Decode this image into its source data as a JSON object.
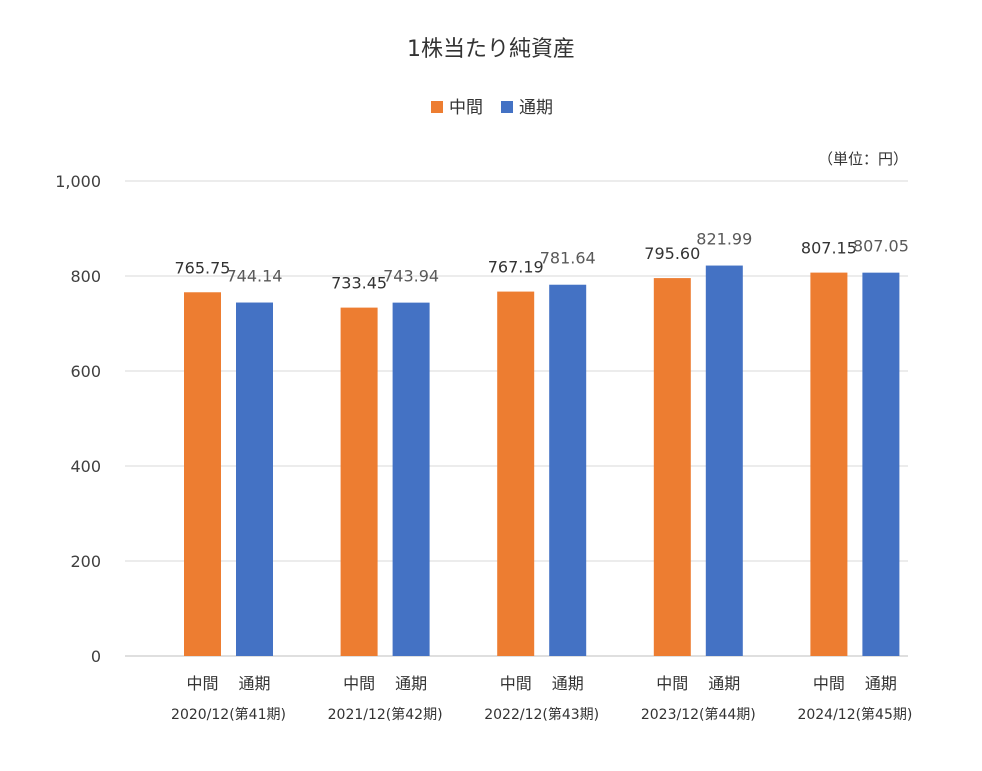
{
  "chart_data": {
    "type": "bar",
    "title": "1株当たり純資産",
    "unit_label": "（単位：円）",
    "legend": {
      "position": "top",
      "items": [
        "中間",
        "通期"
      ]
    },
    "colors": {
      "中間": "#ED7D31",
      "通期": "#4472C4"
    },
    "ylim": [
      0,
      1000
    ],
    "yticks": [
      0,
      200,
      400,
      600,
      800,
      1000
    ],
    "ytick_labels": [
      "0",
      "200",
      "400",
      "600",
      "800",
      "1,000"
    ],
    "grid": true,
    "groups": [
      {
        "period": "2020/12(第41期)",
        "sub_labels": [
          "中間",
          "通期"
        ],
        "values": [
          765.75,
          744.14
        ],
        "labels": [
          "765.75",
          "744.14"
        ]
      },
      {
        "period": "2021/12(第42期)",
        "sub_labels": [
          "中間",
          "通期"
        ],
        "values": [
          733.45,
          743.94
        ],
        "labels": [
          "733.45",
          "743.94"
        ]
      },
      {
        "period": "2022/12(第43期)",
        "sub_labels": [
          "中間",
          "通期"
        ],
        "values": [
          767.19,
          781.64
        ],
        "labels": [
          "767.19",
          "781.64"
        ]
      },
      {
        "period": "2023/12(第44期)",
        "sub_labels": [
          "中間",
          "通期"
        ],
        "values": [
          795.6,
          821.99
        ],
        "labels": [
          "795.60",
          "821.99"
        ]
      },
      {
        "period": "2024/12(第45期)",
        "sub_labels": [
          "中間",
          "通期"
        ],
        "values": [
          807.15,
          807.05
        ],
        "labels": [
          "807.15",
          "807.05"
        ]
      }
    ]
  }
}
